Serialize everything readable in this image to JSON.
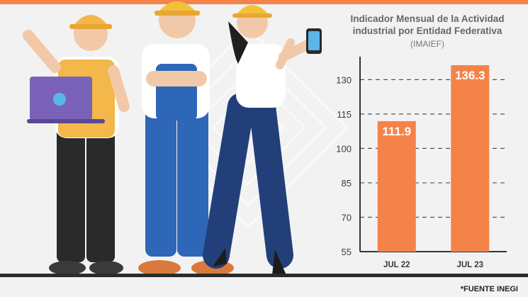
{
  "colors": {
    "accent": "#f4834a",
    "bar": "#f4834a",
    "text_dark": "#3a3a3a",
    "background": "#f2f2f2"
  },
  "chart_data": {
    "type": "bar",
    "title": "Indicador Mensual de la Actividad industrial por Entidad Federativa",
    "subtitle": "(IMAIEF)",
    "categories": [
      "JUL 22",
      "JUL 23"
    ],
    "values": [
      111.9,
      136.3
    ],
    "data_labels": [
      "111.9",
      "136.3"
    ],
    "yticks": [
      55,
      70,
      85,
      100,
      115,
      130
    ],
    "ylim": [
      55,
      140
    ],
    "grid": true,
    "xlabel": "",
    "ylabel": ""
  },
  "footer": {
    "source": "*FUENTE INEGI"
  },
  "illustration": {
    "figures": [
      "worker-with-laptop",
      "worker-arms-crossed",
      "worker-with-phone"
    ]
  }
}
